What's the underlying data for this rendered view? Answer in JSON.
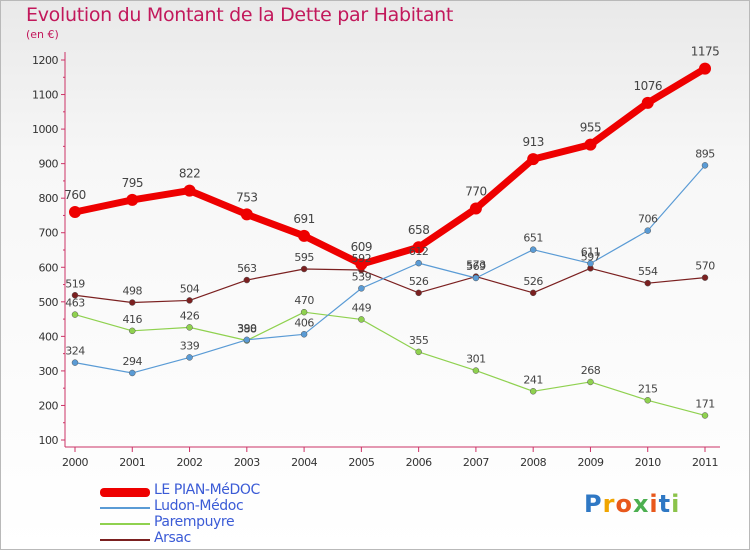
{
  "header": {
    "title": "Evolution du Montant de la Dette par Habitant",
    "subtitle": "(en €)"
  },
  "logo": {
    "text": "Proxiti"
  },
  "chart_data": {
    "type": "line",
    "title": "Evolution du Montant de la Dette par Habitant",
    "subtitle": "(en €)",
    "xlabel": "",
    "ylabel": "",
    "x": [
      "2000",
      "2001",
      "2002",
      "2003",
      "2004",
      "2005",
      "2006",
      "2007",
      "2008",
      "2009",
      "2010",
      "2011"
    ],
    "ylim": [
      100,
      1200
    ],
    "yticks": [
      100,
      200,
      300,
      400,
      500,
      600,
      700,
      800,
      900,
      1000,
      1100,
      1200
    ],
    "grid": false,
    "legend_position": "bottom-left",
    "series": [
      {
        "name": "LE PIAN-MéDOC",
        "color": "#ee0000",
        "width": 7,
        "marker": 6,
        "fontSize": 12,
        "values": [
          760,
          795,
          822,
          753,
          691,
          609,
          658,
          770,
          913,
          955,
          1076,
          1175
        ]
      },
      {
        "name": "Ludon-Médoc",
        "color": "#5a9bd5",
        "width": 1.2,
        "marker": 3,
        "fontSize": 11,
        "values": [
          324,
          294,
          339,
          390,
          406,
          539,
          612,
          569,
          651,
          611,
          706,
          895
        ]
      },
      {
        "name": "Parempuyre",
        "color": "#8fd14f",
        "width": 1.2,
        "marker": 3,
        "fontSize": 11,
        "values": [
          463,
          416,
          426,
          388,
          470,
          449,
          355,
          301,
          241,
          268,
          215,
          171
        ]
      },
      {
        "name": "Arsac",
        "color": "#7b2020",
        "width": 1.2,
        "marker": 3,
        "fontSize": 11,
        "values": [
          519,
          498,
          504,
          563,
          595,
          592,
          526,
          573,
          526,
          597,
          554,
          570
        ]
      }
    ]
  }
}
